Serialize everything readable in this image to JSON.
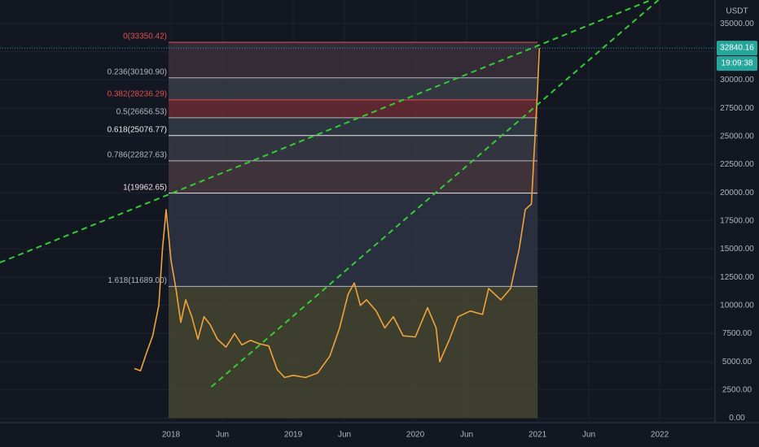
{
  "chart_data": {
    "type": "line",
    "unit_label": "USDT",
    "x": [
      2017.7,
      2017.75,
      2017.8,
      2017.85,
      2017.9,
      2017.93,
      2017.96,
      2018.0,
      2018.04,
      2018.08,
      2018.12,
      2018.17,
      2018.22,
      2018.27,
      2018.32,
      2018.38,
      2018.45,
      2018.52,
      2018.58,
      2018.65,
      2018.72,
      2018.8,
      2018.87,
      2018.93,
      2019.0,
      2019.1,
      2019.2,
      2019.3,
      2019.38,
      2019.45,
      2019.5,
      2019.55,
      2019.6,
      2019.68,
      2019.75,
      2019.82,
      2019.9,
      2020.0,
      2020.1,
      2020.17,
      2020.2,
      2020.28,
      2020.35,
      2020.45,
      2020.55,
      2020.6,
      2020.7,
      2020.78,
      2020.85,
      2020.9,
      2020.95,
      2021.0,
      2021.015
    ],
    "series": [
      {
        "color": "#f0a33a",
        "values": [
          4400,
          4200,
          5800,
          7300,
          10000,
          15000,
          18500,
          14000,
          11500,
          8500,
          10500,
          9000,
          7000,
          9000,
          8300,
          7000,
          6300,
          7500,
          6500,
          6900,
          6600,
          6400,
          4300,
          3600,
          3800,
          3600,
          4000,
          5500,
          8000,
          11000,
          12000,
          10000,
          10500,
          9500,
          8000,
          9000,
          7300,
          7200,
          9800,
          8000,
          5000,
          7000,
          9000,
          9500,
          9200,
          11500,
          10500,
          11500,
          15000,
          18500,
          19000,
          29000,
          32840.16
        ]
      }
    ],
    "xlim": [
      2016.6,
      2022.453
    ],
    "ylim": [
      -400,
      37100
    ],
    "xticks": [
      2018,
      {
        "value": 2018.42,
        "label": "Jun"
      },
      2019,
      {
        "value": 2019.42,
        "label": "Jun"
      },
      2020,
      {
        "value": 2020.42,
        "label": "Jun"
      },
      2021,
      {
        "value": 2021.42,
        "label": "Jun"
      },
      2022
    ],
    "yticks": [
      {
        "value": 0,
        "label": "0.00"
      },
      {
        "value": 2500,
        "label": "2500.00"
      },
      {
        "value": 5000,
        "label": "5000.00"
      },
      {
        "value": 7500,
        "label": "7500.00"
      },
      {
        "value": 10000,
        "label": "10000.00"
      },
      {
        "value": 12500,
        "label": "12500.00"
      },
      {
        "value": 15000,
        "label": "15000.00"
      },
      {
        "value": 17500,
        "label": "17500.00"
      },
      {
        "value": 20000,
        "label": "20000.00"
      },
      {
        "value": 22500,
        "label": "22500.00"
      },
      {
        "value": 25000,
        "label": "25000.00"
      },
      {
        "value": 27500,
        "label": "27500.00"
      },
      {
        "value": 30000,
        "label": "30000.00"
      },
      {
        "value": 32500,
        "label": "32500.00"
      },
      {
        "value": 35000,
        "label": "35000.00"
      }
    ],
    "grid": true,
    "fib_x": [
      2017.98,
      2021.0
    ],
    "fib_levels": [
      {
        "label": "0(33350.42)",
        "value": 33350.42,
        "color": "#e0504c",
        "fill": "#3b2f3a"
      },
      {
        "label": "0.236(30190.90)",
        "value": 30190.9,
        "color": "#b2b5be",
        "fill": "#3a3d47"
      },
      {
        "label": "0.382(28236.29)",
        "value": 28236.29,
        "color": "#e0504c",
        "fill": "#6a2a32"
      },
      {
        "label": "0.5(26656.53)",
        "value": 26656.53,
        "color": "#b2b5be",
        "fill": "#323c45"
      },
      {
        "label": "0.618(25076.77)",
        "value": 25076.77,
        "color": "#e8e8e8",
        "fill": "#383b45"
      },
      {
        "label": "0.786(22827.63)",
        "value": 22827.63,
        "color": "#b2b5be",
        "fill": "#47383f"
      },
      {
        "label": "1(19962.65)",
        "value": 19962.65,
        "color": "#f0dde0",
        "fill": "#2f3445"
      },
      {
        "label": "1.618(11689.00)",
        "value": 11689.0,
        "color": "#b2b5be",
        "fill": "#454530"
      }
    ],
    "trend_lines": [
      {
        "color": "#33cc33",
        "x": [
          2016.6,
          2021.93
        ],
        "values": [
          13806,
          37100
        ]
      },
      {
        "color": "#33cc33",
        "x": [
          2018.33,
          2021.99
        ],
        "values": [
          2773,
          37100
        ]
      }
    ],
    "last_price": 32840.16,
    "countdown": "19:09:38"
  }
}
